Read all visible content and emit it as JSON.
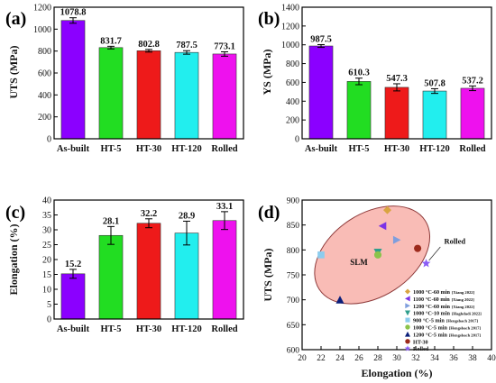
{
  "panel_letters": [
    "(a)",
    "(b)",
    "(c)",
    "(d)"
  ],
  "colors": {
    "purple": "#8B00FF",
    "green": "#22DD22",
    "red": "#EE1A1A",
    "cyan": "#22EEEE",
    "magenta": "#EE11EE",
    "ellipse_fill": "#F9BCB6",
    "ellipse_stroke": "#8E3A3A"
  },
  "chart_data": [
    {
      "type": "bar",
      "panel": "(a)",
      "categories": [
        "As-built",
        "HT-5",
        "HT-30",
        "HT-120",
        "Rolled"
      ],
      "values": [
        1078.8,
        831.7,
        802.8,
        787.5,
        773.1
      ],
      "errors": [
        25,
        12,
        12,
        16,
        20
      ],
      "value_labels": [
        "1078.8",
        "831.7",
        "802.8",
        "787.5",
        "773.1"
      ],
      "ylabel": "UTS (MPa)",
      "ylim": [
        0,
        1200
      ],
      "yticks": [
        0,
        200,
        400,
        600,
        800,
        1000,
        1200
      ]
    },
    {
      "type": "bar",
      "panel": "(b)",
      "categories": [
        "As-built",
        "HT-5",
        "HT-30",
        "HT-120",
        "Rolled"
      ],
      "values": [
        987.5,
        610.3,
        547.3,
        507.8,
        537.2
      ],
      "errors": [
        15,
        35,
        38,
        25,
        25
      ],
      "value_labels": [
        "987.5",
        "610.3",
        "547.3",
        "507.8",
        "537.2"
      ],
      "ylabel": "YS (MPa)",
      "ylim": [
        0,
        1400
      ],
      "yticks": [
        0,
        200,
        400,
        600,
        800,
        1000,
        1200,
        1400
      ]
    },
    {
      "type": "bar",
      "panel": "(c)",
      "categories": [
        "As-built",
        "HT-5",
        "HT-30",
        "HT-120",
        "Rolled"
      ],
      "values": [
        15.2,
        28.1,
        32.2,
        28.9,
        33.1
      ],
      "errors": [
        1.5,
        3.0,
        1.5,
        4.0,
        3.0
      ],
      "value_labels": [
        "15.2",
        "28.1",
        "32.2",
        "28.9",
        "33.1"
      ],
      "ylabel": "Elongation (%)",
      "ylim": [
        0,
        40
      ],
      "yticks": [
        0,
        5,
        10,
        15,
        20,
        25,
        30,
        35,
        40
      ]
    },
    {
      "type": "scatter",
      "panel": "(d)",
      "xlabel": "Elongation (%)",
      "ylabel": "UTS (MPa)",
      "xlim": [
        20,
        40
      ],
      "ylim": [
        600,
        900
      ],
      "xticks": [
        20,
        22,
        24,
        26,
        28,
        30,
        32,
        34,
        36,
        38,
        40
      ],
      "yticks": [
        600,
        650,
        700,
        750,
        800,
        850,
        900
      ],
      "region_label": "SLM",
      "annotation": "Rolled",
      "legend_position": "bottom-right",
      "series": [
        {
          "name": "1000 °C-60 min",
          "ref": "[Xiang 2022]",
          "marker": "diamond",
          "color": "#D9A441",
          "points": [
            [
              29,
              880
            ]
          ]
        },
        {
          "name": "1100 °C-60 min",
          "ref": "[Xiang 2022]",
          "marker": "triangle-left",
          "color": "#7A33E6",
          "points": [
            [
              28.5,
              848
            ]
          ]
        },
        {
          "name": "1200 °C-60 min",
          "ref": "[Xiang 2022]",
          "marker": "triangle-right",
          "color": "#7F9EDD",
          "points": [
            [
              30,
              820
            ]
          ]
        },
        {
          "name": "1000 °C-10 min",
          "ref": "[Haghdadi 2022]",
          "marker": "triangle-down",
          "color": "#2E9E8C",
          "points": [
            [
              28,
              795
            ]
          ]
        },
        {
          "name": "900 °C-5 min",
          "ref": "[Hengsbach 2017]",
          "marker": "square",
          "color": "#8CCCEE",
          "points": [
            [
              22,
              790
            ]
          ]
        },
        {
          "name": "1000 °C-5 min",
          "ref": "[Hengsbach 2017]",
          "marker": "circle",
          "color": "#8BC34A",
          "points": [
            [
              28,
              790
            ]
          ]
        },
        {
          "name": "1200 °C-5 min",
          "ref": "[Hengsbach 2017]",
          "marker": "triangle-up",
          "color": "#0A1E7A",
          "points": [
            [
              24,
              700
            ]
          ]
        },
        {
          "name": "HT-30",
          "ref": "",
          "marker": "circle",
          "color": "#9C2A1C",
          "points": [
            [
              32.2,
              803
            ]
          ]
        },
        {
          "name": "Rolled",
          "ref": "",
          "marker": "star",
          "color": "#8A5CF6",
          "points": [
            [
              33.1,
              773
            ]
          ]
        }
      ]
    }
  ]
}
